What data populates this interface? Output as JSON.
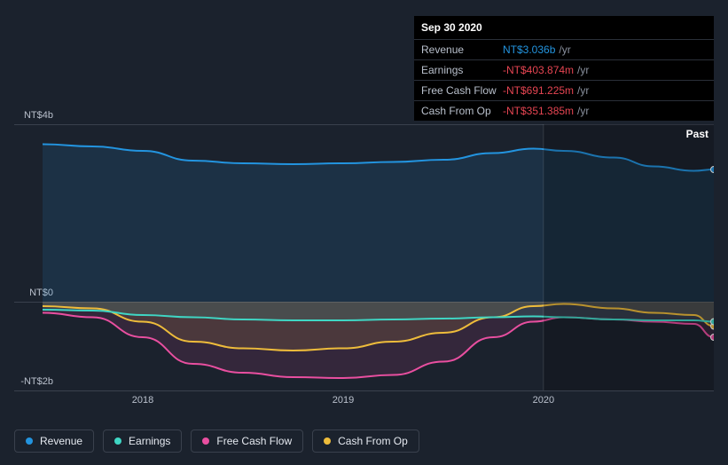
{
  "tooltip": {
    "date": "Sep 30 2020",
    "rows": [
      {
        "label": "Revenue",
        "value": "NT$3.036b",
        "color": "#2394df",
        "unit": "/yr"
      },
      {
        "label": "Earnings",
        "value": "-NT$403.874m",
        "color": "#e64552",
        "unit": "/yr"
      },
      {
        "label": "Free Cash Flow",
        "value": "-NT$691.225m",
        "color": "#e64552",
        "unit": "/yr"
      },
      {
        "label": "Cash From Op",
        "value": "-NT$351.385m",
        "color": "#e64552",
        "unit": "/yr"
      }
    ]
  },
  "chart": {
    "type": "area-line",
    "background": "#1b222d",
    "future_shade": "#00000038",
    "grid_color": "#3a414d",
    "y_axis": {
      "min": -2,
      "max": 4,
      "unit": "b",
      "ticks": [
        {
          "v": 4,
          "label": "NT$4b"
        },
        {
          "v": 0,
          "label": "NT$0"
        },
        {
          "v": -2,
          "label": "-NT$2b"
        }
      ],
      "label_color": "#b9c0cc",
      "fontsize": 11
    },
    "x_axis": {
      "min": 2017.5,
      "max": 2020.85,
      "ticks": [
        {
          "v": 2018,
          "label": "2018"
        },
        {
          "v": 2019,
          "label": "2019"
        },
        {
          "v": 2020,
          "label": "2020"
        }
      ],
      "marker_x": 2020.0,
      "label_color": "#b9c0cc",
      "fontsize": 11
    },
    "past_label": "Past",
    "series": [
      {
        "name": "Revenue",
        "color": "#2394df",
        "fill": "#2394df22",
        "width": 2,
        "data": [
          [
            2017.5,
            3.55
          ],
          [
            2017.75,
            3.5
          ],
          [
            2018.0,
            3.4
          ],
          [
            2018.25,
            3.18
          ],
          [
            2018.5,
            3.12
          ],
          [
            2018.75,
            3.1
          ],
          [
            2019.0,
            3.12
          ],
          [
            2019.25,
            3.15
          ],
          [
            2019.5,
            3.2
          ],
          [
            2019.75,
            3.35
          ],
          [
            2019.95,
            3.45
          ],
          [
            2020.1,
            3.4
          ],
          [
            2020.35,
            3.25
          ],
          [
            2020.55,
            3.05
          ],
          [
            2020.75,
            2.95
          ],
          [
            2020.85,
            2.98
          ]
        ]
      },
      {
        "name": "Cash From Op",
        "color": "#eebc3b",
        "fill": "#eebc3b20",
        "width": 2,
        "data": [
          [
            2017.5,
            -0.1
          ],
          [
            2017.75,
            -0.15
          ],
          [
            2018.0,
            -0.45
          ],
          [
            2018.25,
            -0.9
          ],
          [
            2018.5,
            -1.05
          ],
          [
            2018.75,
            -1.1
          ],
          [
            2019.0,
            -1.05
          ],
          [
            2019.25,
            -0.9
          ],
          [
            2019.5,
            -0.7
          ],
          [
            2019.75,
            -0.35
          ],
          [
            2019.95,
            -0.1
          ],
          [
            2020.1,
            -0.05
          ],
          [
            2020.35,
            -0.15
          ],
          [
            2020.55,
            -0.25
          ],
          [
            2020.75,
            -0.3
          ],
          [
            2020.85,
            -0.55
          ]
        ]
      },
      {
        "name": "Free Cash Flow",
        "color": "#e94fa0",
        "fill": "#e94fa020",
        "width": 2,
        "data": [
          [
            2017.5,
            -0.25
          ],
          [
            2017.75,
            -0.35
          ],
          [
            2018.0,
            -0.8
          ],
          [
            2018.25,
            -1.4
          ],
          [
            2018.5,
            -1.6
          ],
          [
            2018.75,
            -1.7
          ],
          [
            2019.0,
            -1.72
          ],
          [
            2019.25,
            -1.65
          ],
          [
            2019.5,
            -1.35
          ],
          [
            2019.75,
            -0.8
          ],
          [
            2019.95,
            -0.45
          ],
          [
            2020.1,
            -0.35
          ],
          [
            2020.35,
            -0.4
          ],
          [
            2020.55,
            -0.45
          ],
          [
            2020.75,
            -0.5
          ],
          [
            2020.85,
            -0.8
          ]
        ]
      },
      {
        "name": "Earnings",
        "color": "#3fd6c4",
        "fill": "#3fd6c420",
        "width": 2,
        "data": [
          [
            2017.5,
            -0.18
          ],
          [
            2017.75,
            -0.2
          ],
          [
            2018.0,
            -0.3
          ],
          [
            2018.25,
            -0.35
          ],
          [
            2018.5,
            -0.4
          ],
          [
            2018.75,
            -0.42
          ],
          [
            2019.0,
            -0.42
          ],
          [
            2019.25,
            -0.4
          ],
          [
            2019.5,
            -0.38
          ],
          [
            2019.75,
            -0.35
          ],
          [
            2019.95,
            -0.33
          ],
          [
            2020.1,
            -0.35
          ],
          [
            2020.35,
            -0.4
          ],
          [
            2020.55,
            -0.42
          ],
          [
            2020.75,
            -0.42
          ],
          [
            2020.85,
            -0.45
          ]
        ]
      }
    ],
    "legend": [
      {
        "label": "Revenue",
        "color": "#2394df"
      },
      {
        "label": "Earnings",
        "color": "#3fd6c4"
      },
      {
        "label": "Free Cash Flow",
        "color": "#e94fa0"
      },
      {
        "label": "Cash From Op",
        "color": "#eebc3b"
      }
    ]
  }
}
